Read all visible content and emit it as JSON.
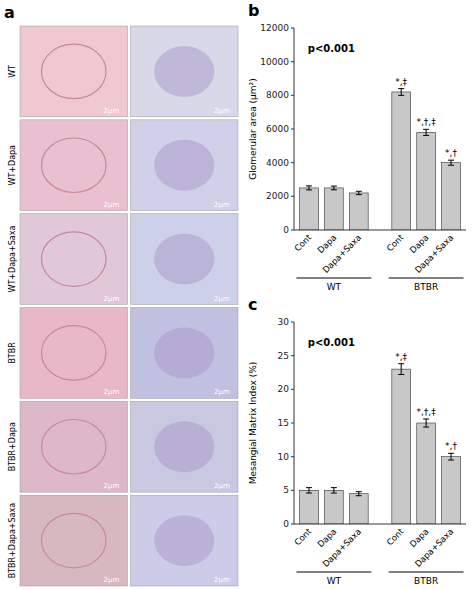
{
  "chart_data": [
    {
      "type": "image_grid",
      "panel_label": "a",
      "categories": [
        "WT",
        "WT+Dapa",
        "WT+Dapa+Saxa",
        "BTBR",
        "BTBR+Dapa",
        "BTBR+Dapa+Saxa"
      ],
      "series": [
        {
          "colors": [
            "#f0c8d0",
            "#e8c0d0",
            "#e0c8d8",
            "#e8b8c8",
            "#ddb8c8",
            "#d8b8c0"
          ]
        },
        {
          "colors": [
            "#d8d8e8",
            "#d0d0e8",
            "#ccd0e8",
            "#c0c0e0",
            "#c8c8e0",
            "#cccce8"
          ]
        }
      ],
      "scale_bar_label": "2μm"
    },
    {
      "type": "bar",
      "panel_label": "b",
      "title": "p<0.001",
      "ylabel": "Glomerular area (μm²)",
      "categories": [
        "Cont",
        "Dapa",
        "Dapa+Saxa",
        "Cont",
        "Dapa",
        "Dapa+Saxa"
      ],
      "groups": [
        {
          "name": "WT",
          "size": 3
        },
        {
          "name": "BTBR",
          "size": 3
        }
      ],
      "values": [
        2500,
        2500,
        2200,
        8200,
        5800,
        4000
      ],
      "errors": [
        120,
        110,
        100,
        200,
        180,
        150
      ],
      "annotations": [
        null,
        null,
        null,
        "*,‡",
        "*,†,‡",
        "*,†"
      ],
      "color": "#c8c8c8",
      "ylim": [
        0,
        12000
      ],
      "yticks": [
        0,
        2000,
        4000,
        6000,
        8000,
        10000,
        12000
      ],
      "grid": false
    },
    {
      "type": "bar",
      "panel_label": "c",
      "title": "p<0.001",
      "ylabel": "Mesangial Matrix Index (%)",
      "categories": [
        "Cont",
        "Dapa",
        "Dapa+Saxa",
        "Cont",
        "Dapa",
        "Dapa+Saxa"
      ],
      "groups": [
        {
          "name": "WT",
          "size": 3
        },
        {
          "name": "BTBR",
          "size": 3
        }
      ],
      "values": [
        5.0,
        5.0,
        4.5,
        23.0,
        15.0,
        10.0
      ],
      "errors": [
        0.4,
        0.4,
        0.3,
        0.8,
        0.6,
        0.5
      ],
      "annotations": [
        null,
        null,
        null,
        "*,‡",
        "*,†,‡",
        "*,†"
      ],
      "color": "#c8c8c8",
      "ylim": [
        0,
        30
      ],
      "yticks": [
        0,
        5,
        10,
        15,
        20,
        25,
        30
      ],
      "grid": false
    }
  ]
}
